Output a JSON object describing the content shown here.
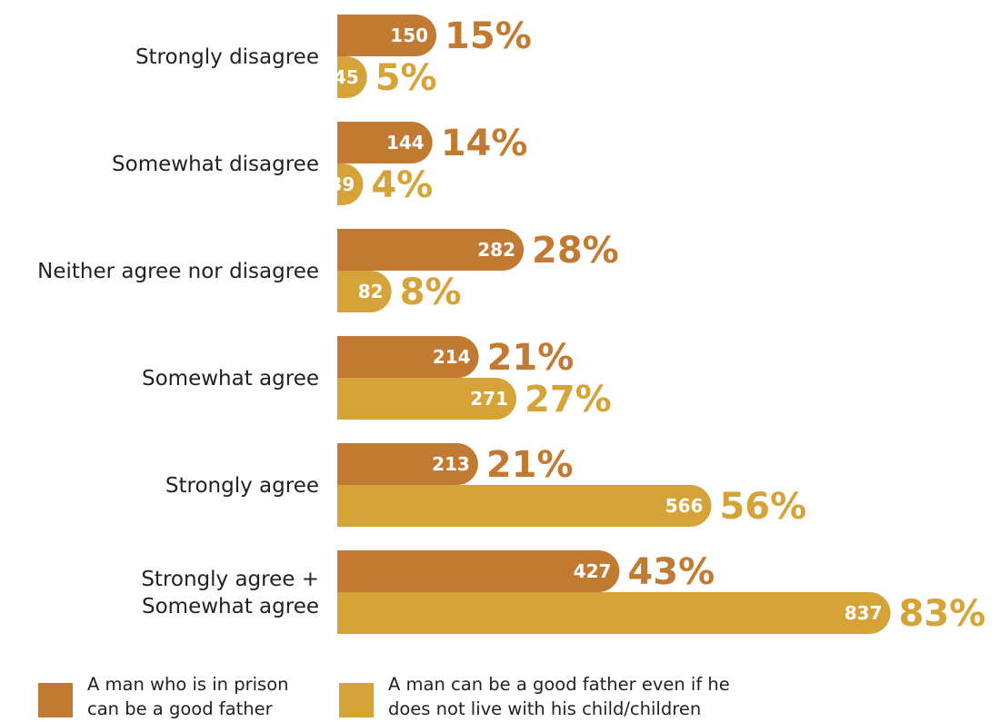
{
  "chart_data": {
    "type": "bar",
    "orientation": "horizontal",
    "categories": [
      "Strongly disagree",
      "Somewhat disagree",
      "Neither agree nor disagree",
      "Somewhat agree",
      "Strongly agree",
      "Strongly agree +\nSomewhat agree"
    ],
    "series": [
      {
        "name": "A man who is in prison can be a good father",
        "color": "#C27A33",
        "values": [
          150,
          144,
          282,
          214,
          213,
          427
        ],
        "percent_labels": [
          "15%",
          "14%",
          "28%",
          "21%",
          "21%",
          "43%"
        ]
      },
      {
        "name": "A man can be a good father even if he does not live with his child/children",
        "color": "#D6A338",
        "values": [
          45,
          39,
          82,
          271,
          566,
          837
        ],
        "percent_labels": [
          "5%",
          "4%",
          "8%",
          "27%",
          "56%",
          "83%"
        ]
      }
    ],
    "legend_position": "bottom",
    "grid": false
  },
  "legend": [
    {
      "line1": "A man who is in prison",
      "line2": "can be a good father"
    },
    {
      "line1": "A man can be a good father even if he",
      "line2": "does not live with his child/children"
    }
  ]
}
